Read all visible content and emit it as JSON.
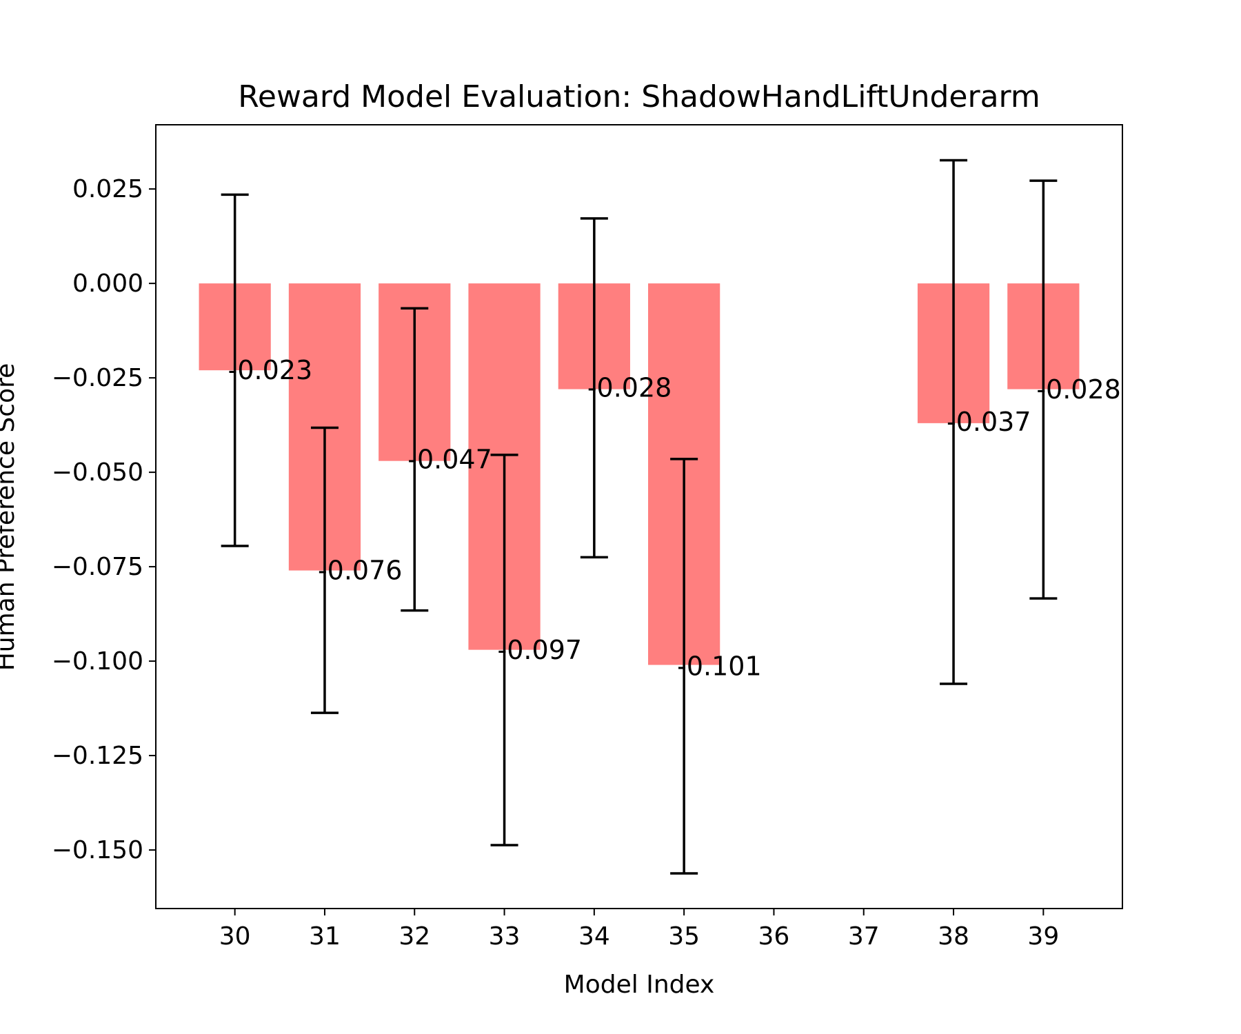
{
  "chart_data": {
    "type": "bar",
    "title": "Reward Model Evaluation: ShadowHandLiftUnderarm",
    "xlabel": "Model Index",
    "ylabel": "Human Preference Score",
    "x_ticks": [
      30,
      31,
      32,
      33,
      34,
      35,
      36,
      37,
      38,
      39
    ],
    "y_ticks": [
      "0.025",
      "0.000",
      "−0.025",
      "−0.050",
      "−0.075",
      "−0.100",
      "−0.125",
      "−0.150"
    ],
    "y_tick_values": [
      0.025,
      0.0,
      -0.025,
      -0.05,
      -0.075,
      -0.1,
      -0.125,
      -0.15
    ],
    "xlim": [
      29.12,
      39.88
    ],
    "ylim": [
      -0.1655,
      0.042
    ],
    "bar_color": "#ff7f7f",
    "error_color": "#000000",
    "bars": [
      {
        "x": 30,
        "value": -0.023,
        "err_low": -0.0695,
        "err_high": 0.0235,
        "label": "-0.023"
      },
      {
        "x": 31,
        "value": -0.076,
        "err_low": -0.1137,
        "err_high": -0.0382,
        "label": "-0.076"
      },
      {
        "x": 32,
        "value": -0.047,
        "err_low": -0.0866,
        "err_high": -0.0066,
        "label": "-0.047"
      },
      {
        "x": 33,
        "value": -0.097,
        "err_low": -0.1487,
        "err_high": -0.0454,
        "label": "-0.097"
      },
      {
        "x": 34,
        "value": -0.028,
        "err_low": -0.0725,
        "err_high": 0.0172,
        "label": "-0.028"
      },
      {
        "x": 35,
        "value": -0.101,
        "err_low": -0.1562,
        "err_high": -0.0465,
        "label": "-0.101"
      },
      {
        "x": 38,
        "value": -0.037,
        "err_low": -0.106,
        "err_high": 0.0326,
        "label": "-0.037"
      },
      {
        "x": 39,
        "value": -0.028,
        "err_low": -0.0834,
        "err_high": 0.0272,
        "label": "-0.028"
      }
    ],
    "grid": false,
    "legend": "none"
  }
}
